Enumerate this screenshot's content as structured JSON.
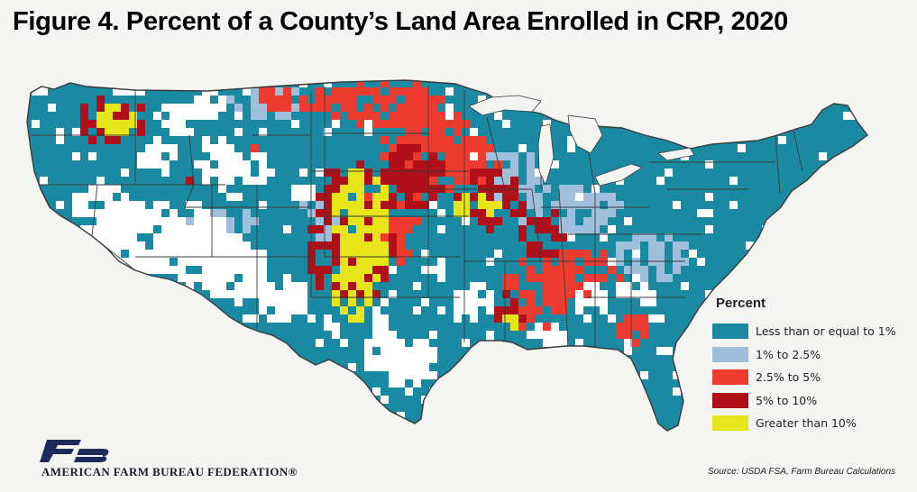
{
  "title": "Figure 4. Percent of a County’s Land Area Enrolled in CRP, 2020",
  "legend": {
    "title": "Percent",
    "items": [
      {
        "label": "Less than or equal to 1%",
        "color": "#1a8aa3"
      },
      {
        "label": "1% to 2.5%",
        "color": "#9fbfdc"
      },
      {
        "label": "2.5% to 5%",
        "color": "#ee3b2f"
      },
      {
        "label": "5% to 10%",
        "color": "#b0101a"
      },
      {
        "label": "Greater than 10%",
        "color": "#e6e61a"
      }
    ]
  },
  "no_data_color": "#ffffff",
  "state_border_color": "#3a3a3a",
  "logo": {
    "text": "FB",
    "color": "#1d2a5c",
    "accent": "#b0101a"
  },
  "organization": "AMERICAN FARM BUREAU FEDERATION®",
  "source": "Source: USDA FSA, Farm Bureau Calculations"
}
